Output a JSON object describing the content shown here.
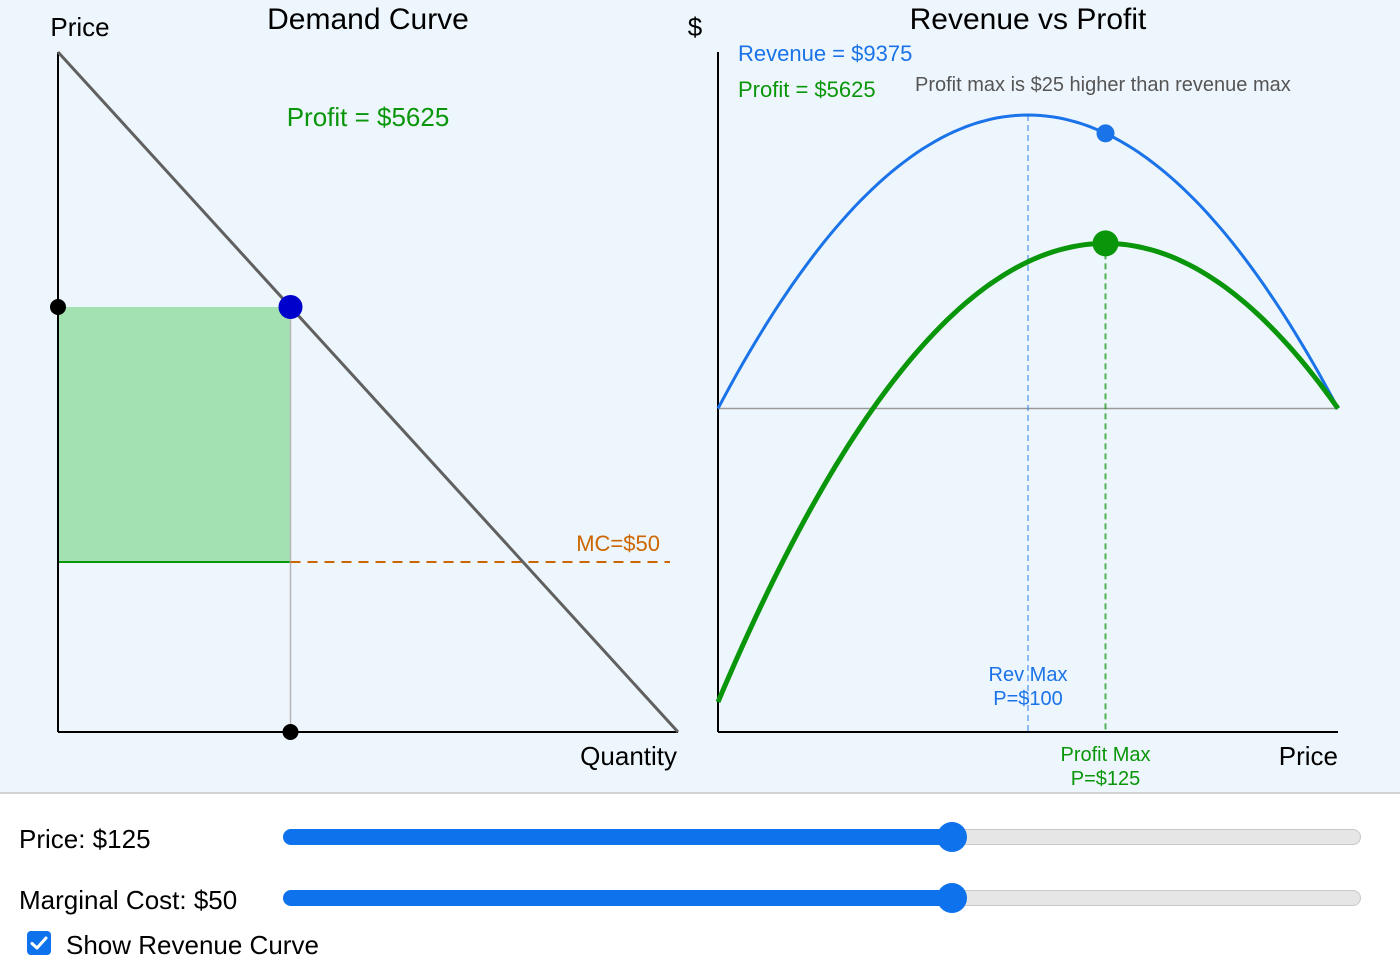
{
  "left_chart": {
    "title": "Demand Curve",
    "y_axis_label": "Price",
    "x_axis_label": "Quantity",
    "profit_text": "Profit = $5625",
    "mc_label": "MC=$50"
  },
  "right_chart": {
    "title": "Revenue vs Profit",
    "y_axis_label": "$",
    "x_axis_label": "Price",
    "revenue_text": "Revenue = $9375",
    "profit_text": "Profit = $5625",
    "note": "Profit max is $25 higher than revenue max",
    "rev_max_label_line1": "Rev Max",
    "rev_max_label_line2": "P=$100",
    "profit_max_label_line1": "Profit Max",
    "profit_max_label_line2": "P=$125"
  },
  "controls": {
    "price_label": "Price: $125",
    "price_slider_fraction": 0.621,
    "mc_label": "Marginal Cost: $50",
    "mc_slider_fraction": 0.621,
    "show_revenue_label": "Show Revenue Curve",
    "show_revenue_checked": true
  },
  "colors": {
    "revenue": "#1a73e8",
    "profit": "#0a960a",
    "mc": "#cc6600",
    "demand": "#606060",
    "price_point": "#0000cc",
    "profit_rect": "#a3e2b0",
    "note": "#555555"
  },
  "chart_data": [
    {
      "type": "line",
      "title": "Demand Curve",
      "xlabel": "Quantity",
      "ylabel": "Price",
      "demand": {
        "price_intercept": 200,
        "quantity_intercept": 200,
        "slope": -1
      },
      "price": 125,
      "quantity": 75,
      "marginal_cost": 50,
      "profit": 5625
    },
    {
      "type": "line",
      "title": "Revenue vs Profit",
      "xlabel": "Price",
      "ylabel": "$",
      "xlim": [
        0,
        200
      ],
      "series": [
        {
          "name": "Revenue",
          "formula": "P*(200-P)",
          "max_at_price": 100,
          "max_value": 10000
        },
        {
          "name": "Profit",
          "formula": "(P-50)*(200-P)",
          "max_at_price": 125,
          "max_value": 5625
        }
      ],
      "current_price": 125,
      "current_revenue": 9375,
      "current_profit": 5625
    }
  ]
}
